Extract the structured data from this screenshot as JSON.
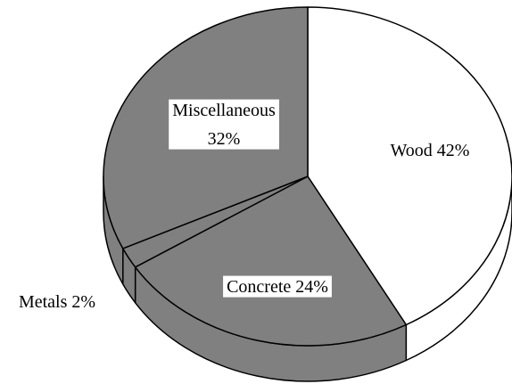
{
  "chart_data": {
    "type": "pie",
    "categories": [
      "Wood",
      "Concrete",
      "Metals",
      "Miscellaneous"
    ],
    "values": [
      42,
      24,
      2,
      32
    ],
    "value_labels": [
      "42%",
      "24%",
      "2%",
      "32%"
    ],
    "colors": [
      "#ffffff",
      "#808080",
      "#808080",
      "#808080"
    ]
  }
}
